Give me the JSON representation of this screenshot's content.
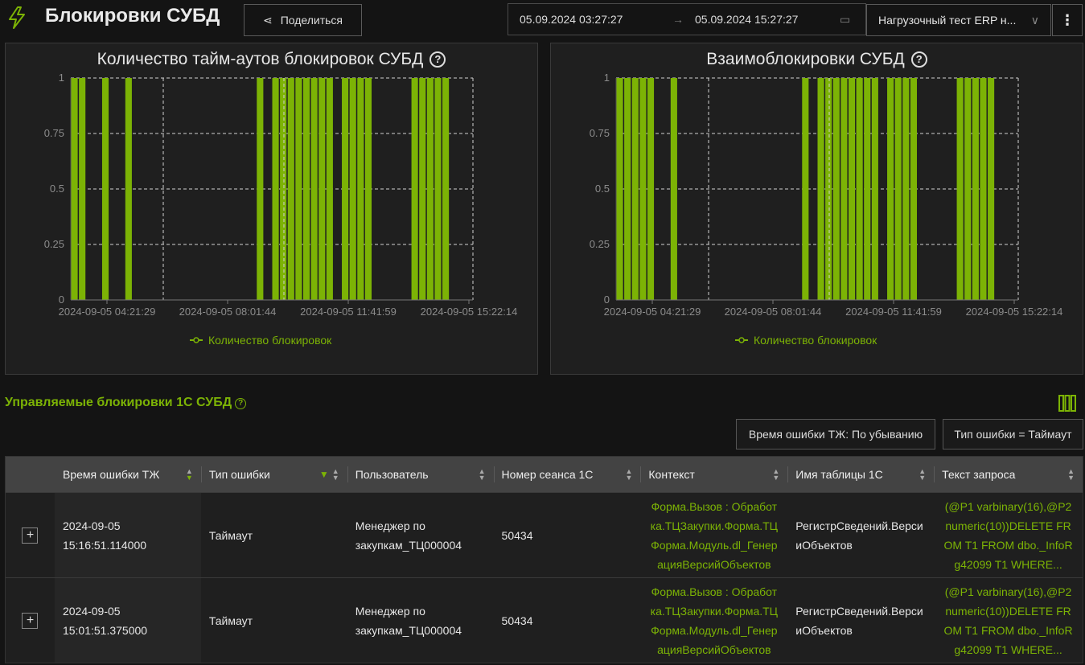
{
  "header": {
    "title": "Блокировки СУБД",
    "share_label": "Поделиться",
    "date_from": "05.09.2024 03:27:27",
    "date_to": "05.09.2024 15:27:27",
    "arrow": "→",
    "test_select": "Нагрузочный тест ERP н...",
    "more": "⋮"
  },
  "colors": {
    "accent": "#7cb305",
    "panel": "#1f1f1f",
    "background": "#141414"
  },
  "chart_data": [
    {
      "type": "bar",
      "title": "Количество тайм-аутов блокировок СУБД",
      "legend": "Количество блокировок",
      "legend_position": "bottom-center",
      "yticks": [
        "0",
        "0.25",
        "0.5",
        "0.75",
        "1"
      ],
      "ylim": [
        0,
        1
      ],
      "xticks": [
        "2024-09-05 04:21:29",
        "2024-09-05 08:01:44",
        "2024-09-05 11:41:59",
        "2024-09-05 15:22:14"
      ],
      "bin_count": 52,
      "bins": [
        0,
        1,
        4,
        7,
        24,
        26,
        27,
        28,
        29,
        30,
        31,
        32,
        33,
        35,
        36,
        37,
        38,
        44,
        45,
        46,
        47,
        48
      ],
      "values": [
        1,
        1,
        1,
        1,
        1,
        1,
        1,
        1,
        1,
        1,
        1,
        1,
        1,
        1,
        1,
        1,
        1,
        1,
        1,
        1,
        1,
        1
      ]
    },
    {
      "type": "bar",
      "title": "Взаимоблокировки СУБД",
      "legend": "Количество блокировок",
      "legend_position": "bottom-center",
      "yticks": [
        "0",
        "0.25",
        "0.5",
        "0.75",
        "1"
      ],
      "ylim": [
        0,
        1
      ],
      "xticks": [
        "2024-09-05 04:21:29",
        "2024-09-05 08:01:44",
        "2024-09-05 11:41:59",
        "2024-09-05 15:22:14"
      ],
      "bin_count": 52,
      "bins": [
        0,
        1,
        2,
        3,
        4,
        7,
        24,
        26,
        27,
        28,
        29,
        30,
        31,
        32,
        33,
        35,
        36,
        37,
        38,
        44,
        45,
        46,
        47,
        48
      ],
      "values": [
        1,
        1,
        1,
        1,
        1,
        1,
        1,
        1,
        1,
        1,
        1,
        1,
        1,
        1,
        1,
        1,
        1,
        1,
        1,
        1,
        1,
        1,
        1,
        1
      ]
    }
  ],
  "section": {
    "title": "Управляемые блокировки 1С СУБД",
    "filter_sort": "Время ошибки ТЖ: По убыванию",
    "filter_type": "Тип ошибки = Таймаут"
  },
  "table": {
    "columns": [
      "Время ошибки ТЖ",
      "Тип ошибки",
      "Пользователь",
      "Номер сеанса 1С",
      "Контекст",
      "Имя таблицы 1С",
      "Текст запроса"
    ],
    "rows": [
      {
        "time": "2024-09-05 15:16:51.114000",
        "type": "Таймаут",
        "user": "Менеджер по закупкам_ТЦ000004",
        "session": "50434",
        "context": "Форма.Вызов : Обработка.ТЦЗакупки.Форма.ТЦФорма.Модуль.dl_ГенерацияВерсийОбъектов",
        "table": "РегистрСведений.ВерсииОбъектов",
        "query": "(@P1 varbinary(16),@P2 numeric(10))DELETE FROM T1 FROM dbo._InfoRg42099 T1 WHERE..."
      },
      {
        "time": "2024-09-05 15:01:51.375000",
        "type": "Таймаут",
        "user": "Менеджер по закупкам_ТЦ000004",
        "session": "50434",
        "context": "Форма.Вызов : Обработка.ТЦЗакупки.Форма.ТЦФорма.Модуль.dl_ГенерацияВерсийОбъектов",
        "table": "РегистрСведений.ВерсииОбъектов",
        "query": "(@P1 varbinary(16),@P2 numeric(10))DELETE FROM T1 FROM dbo._InfoRg42099 T1 WHERE..."
      }
    ]
  }
}
